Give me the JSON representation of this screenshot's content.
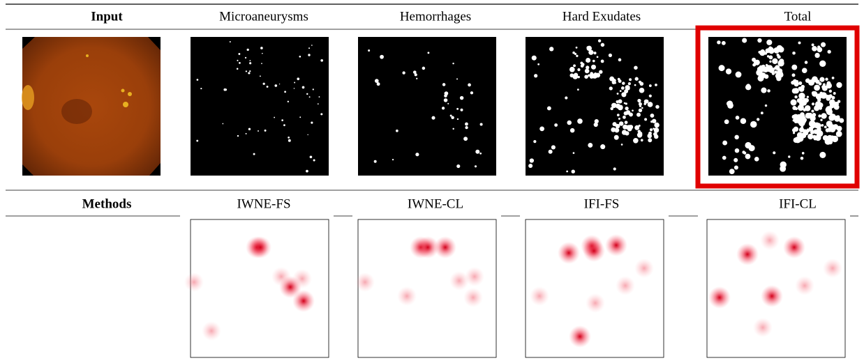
{
  "header": [
    "Input",
    "Microaneurysms",
    "Hemorrhages",
    "Hard Exudates",
    "Total"
  ],
  "methods_header": [
    "Methods",
    "IWNE-FS",
    "IWNE-CL",
    "IFI-FS",
    "IFI-CL"
  ]
}
